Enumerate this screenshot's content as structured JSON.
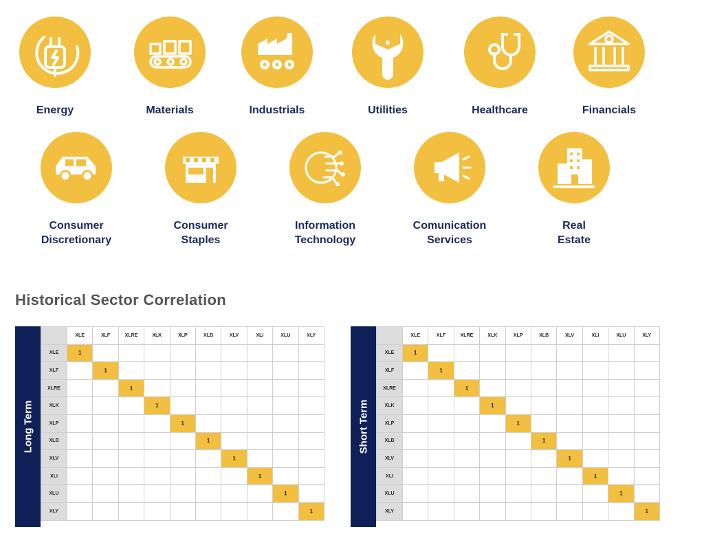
{
  "sectors": [
    {
      "label": "Energy",
      "icon": "power-plug-icon"
    },
    {
      "label": "Materials",
      "icon": "conveyor-belt-icon"
    },
    {
      "label": "Industrials",
      "icon": "factory-icon"
    },
    {
      "label": "Utilities",
      "icon": "wrench-gear-icon"
    },
    {
      "label": "Healthcare",
      "icon": "stethoscope-icon"
    },
    {
      "label": "Financials",
      "icon": "bank-icon"
    },
    {
      "label": "Consumer\nDiscretionary",
      "icon": "car-icon"
    },
    {
      "label": "Consumer\nStaples",
      "icon": "storefront-icon"
    },
    {
      "label": "Information\nTechnology",
      "icon": "digital-brain-icon"
    },
    {
      "label": "Comunication\nServices",
      "icon": "megaphone-icon"
    },
    {
      "label": "Real\nEstate",
      "icon": "buildings-icon"
    }
  ],
  "section_title": "Historical Sector Correlation",
  "tickers": [
    "XLE",
    "XLF",
    "XLRE",
    "XLK",
    "XLP",
    "XLB",
    "XLV",
    "XLI",
    "XLU",
    "XLY"
  ],
  "matrices": [
    {
      "label": "Long Term",
      "diagonal_value": "1"
    },
    {
      "label": "Short Term",
      "diagonal_value": "1"
    }
  ],
  "colors": {
    "accent": "#f3bf41",
    "navy": "#0f1f57",
    "label_text": "#1b2a5c",
    "header_fill": "#dcdcdc"
  }
}
